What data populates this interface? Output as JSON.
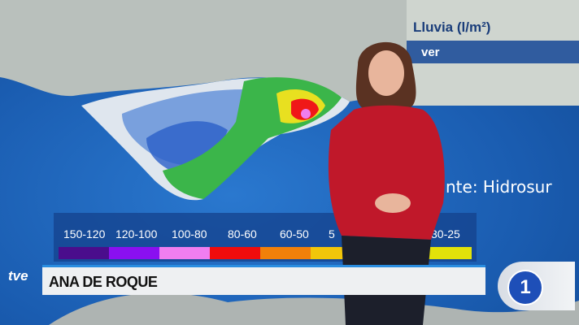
{
  "inset": {
    "title": "Lluvia (l/m²)",
    "bar_text": "ver"
  },
  "source": "nte: Hidrosur",
  "legend": {
    "items": [
      {
        "label": "150-120",
        "color": "#4a0d8c"
      },
      {
        "label": "120-100",
        "color": "#8a10f0"
      },
      {
        "label": "100-80",
        "color": "#f07ef0"
      },
      {
        "label": "80-60",
        "color": "#f00c0c"
      },
      {
        "label": "60-50",
        "color": "#f2800a"
      },
      {
        "label": "5",
        "color": "#f2c60a"
      },
      {
        "label": "30-25",
        "color": "#e2e20a"
      }
    ]
  },
  "lower_third": {
    "name": "ANA DE ROQUE"
  },
  "logos": {
    "tve": "tve",
    "channel": "1"
  },
  "colors": {
    "sea": "#1a5fb0",
    "top": "#c0182a",
    "lower_border": "#2a8de0"
  }
}
